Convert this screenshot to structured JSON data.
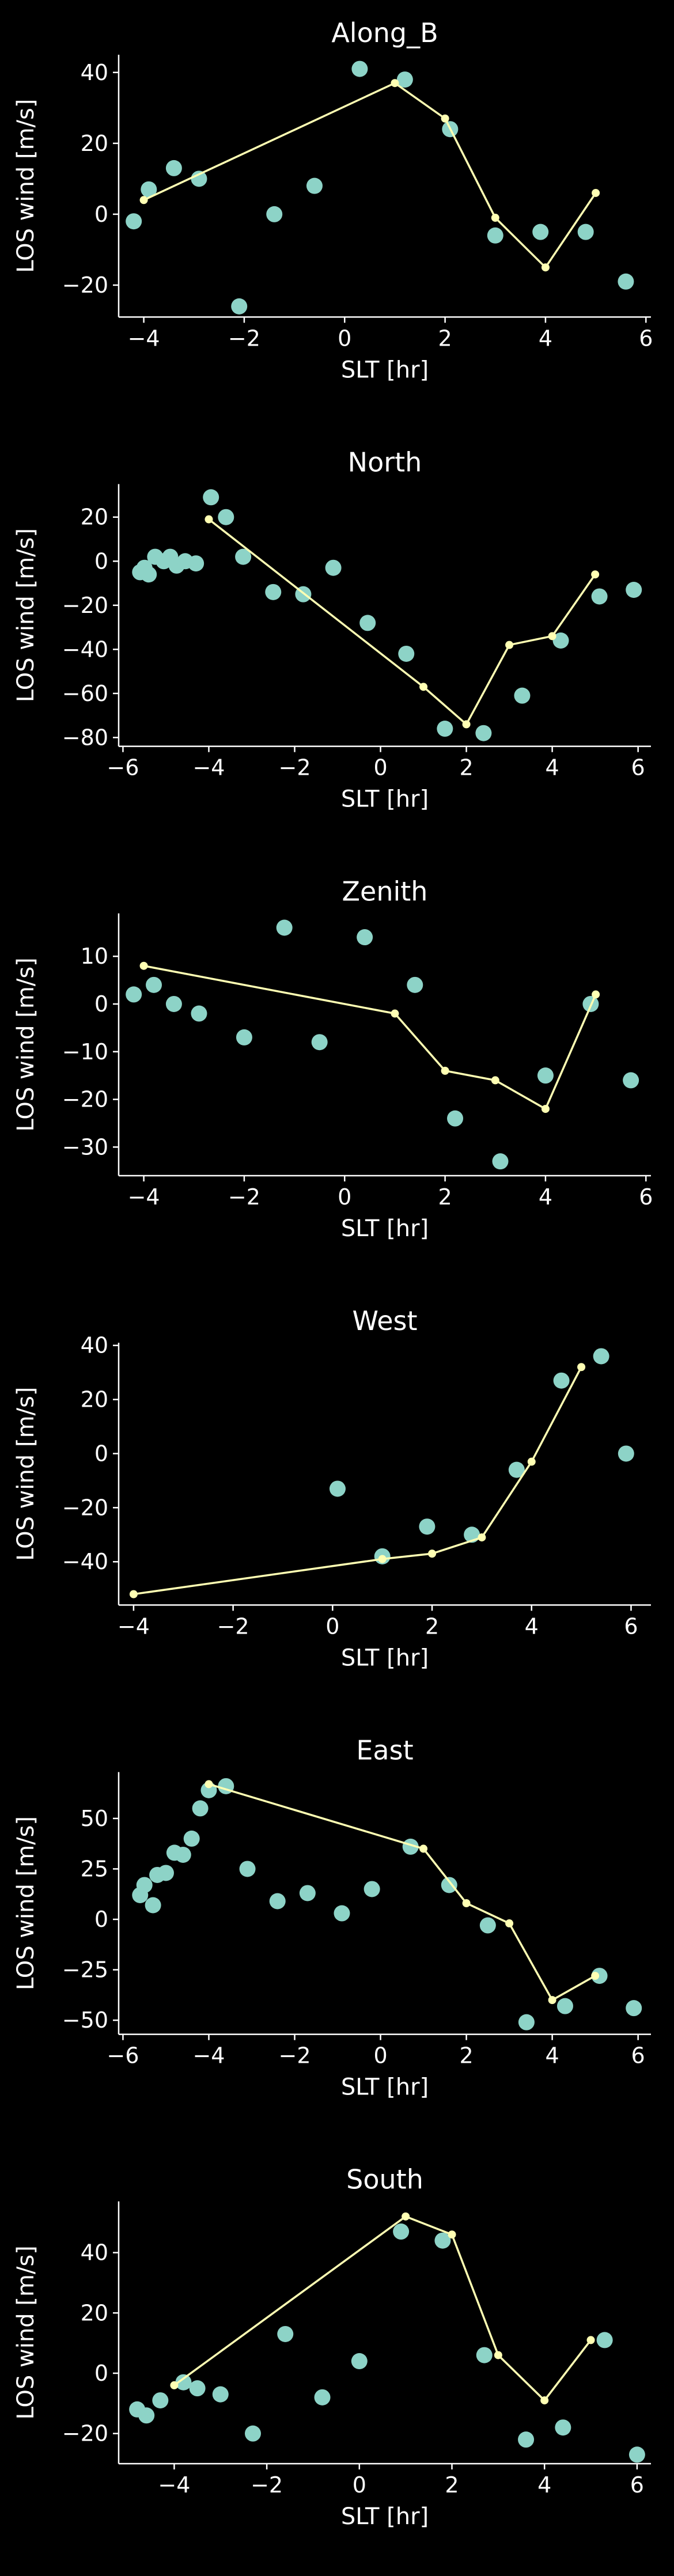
{
  "figure": {
    "background": "#000000",
    "scatter_color": "#8dd3c7",
    "line_color": "#ffffb3",
    "axis_color": "#ffffff"
  },
  "chart_data": [
    {
      "type": "scatter",
      "title": "Along_B",
      "xlabel": "SLT [hr]",
      "ylabel": "LOS wind [m/s]",
      "xlim": [
        -4.5,
        6.1
      ],
      "ylim": [
        -29,
        45
      ],
      "xticks": [
        -4,
        -2,
        0,
        2,
        4,
        6
      ],
      "yticks": [
        -20,
        0,
        20,
        40
      ],
      "series": [
        {
          "kind": "scatter",
          "x": [
            -4.2,
            -3.9,
            -3.4,
            -2.9,
            -2.1,
            -1.4,
            -0.6,
            0.3,
            1.2,
            2.1,
            3.0,
            3.9,
            4.8,
            5.6
          ],
          "y": [
            -2,
            7,
            13,
            10,
            -26,
            0,
            8,
            41,
            38,
            24,
            -6,
            -5,
            -5,
            -19
          ]
        },
        {
          "kind": "line",
          "x": [
            -4.0,
            1.0,
            2.0,
            3.0,
            4.0,
            5.0
          ],
          "y": [
            4,
            37,
            27,
            -1,
            -15,
            6
          ]
        }
      ]
    },
    {
      "type": "scatter",
      "title": "North",
      "xlabel": "SLT [hr]",
      "ylabel": "LOS wind [m/s]",
      "xlim": [
        -6.1,
        6.3
      ],
      "ylim": [
        -84,
        35
      ],
      "xticks": [
        -6,
        -4,
        -2,
        0,
        2,
        4,
        6
      ],
      "yticks": [
        -80,
        -60,
        -40,
        -20,
        0,
        20
      ],
      "series": [
        {
          "kind": "scatter",
          "x": [
            -5.6,
            -5.5,
            -5.4,
            -5.25,
            -5.05,
            -4.9,
            -4.75,
            -4.55,
            -4.3,
            -3.95,
            -3.6,
            -3.2,
            -2.5,
            -1.8,
            -1.1,
            -0.3,
            0.6,
            1.5,
            2.4,
            3.3,
            4.2,
            5.1,
            5.9
          ],
          "y": [
            -5,
            -3,
            -6,
            2,
            0,
            2,
            -2,
            0,
            -1,
            29,
            20,
            2,
            -14,
            -15,
            -3,
            -28,
            -42,
            -76,
            -78,
            -61,
            -36,
            -16,
            -13
          ]
        },
        {
          "kind": "line",
          "x": [
            -4.0,
            1.0,
            2.0,
            3.0,
            4.0,
            5.0
          ],
          "y": [
            19,
            -57,
            -74,
            -38,
            -34,
            -6
          ]
        }
      ]
    },
    {
      "type": "scatter",
      "title": "Zenith",
      "xlabel": "SLT [hr]",
      "ylabel": "LOS wind [m/s]",
      "xlim": [
        -4.5,
        6.1
      ],
      "ylim": [
        -36,
        19
      ],
      "xticks": [
        -4,
        -2,
        0,
        2,
        4,
        6
      ],
      "yticks": [
        -30,
        -20,
        -10,
        0,
        10
      ],
      "series": [
        {
          "kind": "scatter",
          "x": [
            -4.2,
            -3.8,
            -3.4,
            -2.9,
            -2.0,
            -1.2,
            -0.5,
            0.4,
            1.4,
            2.2,
            3.1,
            4.0,
            4.9,
            5.7
          ],
          "y": [
            2,
            4,
            0,
            -2,
            -7,
            16,
            -8,
            14,
            4,
            -24,
            -33,
            -15,
            0,
            -16
          ]
        },
        {
          "kind": "line",
          "x": [
            -4.0,
            1.0,
            2.0,
            3.0,
            4.0,
            5.0
          ],
          "y": [
            8,
            -2,
            -14,
            -16,
            -22,
            2
          ]
        }
      ]
    },
    {
      "type": "scatter",
      "title": "West",
      "xlabel": "SLT [hr]",
      "ylabel": "LOS wind [m/s]",
      "xlim": [
        -4.3,
        6.4
      ],
      "ylim": [
        -56,
        41
      ],
      "xticks": [
        -4,
        -2,
        0,
        2,
        4,
        6
      ],
      "yticks": [
        -40,
        -20,
        0,
        20,
        40
      ],
      "series": [
        {
          "kind": "scatter",
          "x": [
            0.1,
            1.0,
            1.9,
            2.8,
            3.7,
            4.6,
            5.4,
            5.9
          ],
          "y": [
            -13,
            -38,
            -27,
            -30,
            -6,
            27,
            36,
            0
          ]
        },
        {
          "kind": "line",
          "x": [
            -4.0,
            1.0,
            2.0,
            3.0,
            4.0,
            5.0
          ],
          "y": [
            -52,
            -39,
            -37,
            -31,
            -3,
            32
          ]
        }
      ]
    },
    {
      "type": "scatter",
      "title": "East",
      "xlabel": "SLT [hr]",
      "ylabel": "LOS wind [m/s]",
      "xlim": [
        -6.1,
        6.3
      ],
      "ylim": [
        -57,
        73
      ],
      "xticks": [
        -6,
        -4,
        -2,
        0,
        2,
        4,
        6
      ],
      "yticks": [
        -50,
        -25,
        0,
        25,
        50
      ],
      "series": [
        {
          "kind": "scatter",
          "x": [
            -5.6,
            -5.5,
            -5.3,
            -5.2,
            -5.0,
            -4.8,
            -4.6,
            -4.4,
            -4.2,
            -4.0,
            -3.6,
            -3.1,
            -2.4,
            -1.7,
            -0.9,
            -0.2,
            0.7,
            1.6,
            2.5,
            3.4,
            4.3,
            5.1,
            5.9
          ],
          "y": [
            12,
            17,
            7,
            22,
            23,
            33,
            32,
            40,
            55,
            64,
            66,
            25,
            9,
            13,
            3,
            15,
            36,
            17,
            -3,
            -51,
            -43,
            -28,
            -44
          ]
        },
        {
          "kind": "line",
          "x": [
            -4.0,
            1.0,
            2.0,
            3.0,
            4.0,
            5.0
          ],
          "y": [
            67,
            35,
            8,
            -2,
            -40,
            -28
          ]
        }
      ]
    },
    {
      "type": "scatter",
      "title": "South",
      "xlabel": "SLT [hr]",
      "ylabel": "LOS wind [m/s]",
      "xlim": [
        -5.2,
        6.3
      ],
      "ylim": [
        -30,
        57
      ],
      "xticks": [
        -4,
        -2,
        0,
        2,
        4,
        6
      ],
      "yticks": [
        -20,
        0,
        20,
        40
      ],
      "series": [
        {
          "kind": "scatter",
          "x": [
            -4.8,
            -4.6,
            -4.3,
            -3.8,
            -3.5,
            -3.0,
            -2.3,
            -1.6,
            -0.8,
            0.0,
            0.9,
            1.8,
            2.7,
            3.6,
            4.4,
            5.3,
            6.0
          ],
          "y": [
            -12,
            -14,
            -9,
            -3,
            -5,
            -7,
            -20,
            13,
            -8,
            4,
            47,
            44,
            6,
            -22,
            -18,
            11,
            -27
          ]
        },
        {
          "kind": "line",
          "x": [
            -4.0,
            1.0,
            2.0,
            3.0,
            4.0,
            5.0
          ],
          "y": [
            -4,
            52,
            46,
            6,
            -9,
            11
          ]
        }
      ]
    }
  ]
}
